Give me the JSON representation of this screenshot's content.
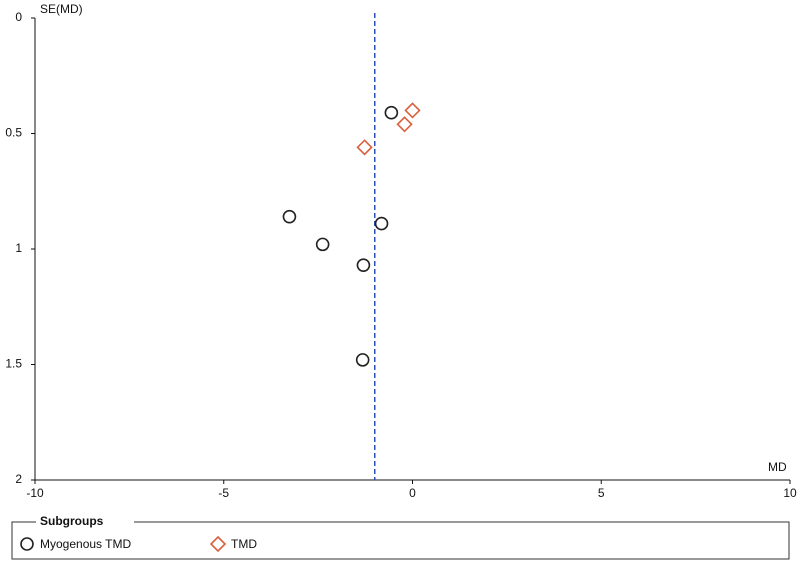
{
  "chart_data": {
    "type": "scatter",
    "y_label": "SE(MD)",
    "x_label": "MD",
    "xlim": [
      -10,
      10
    ],
    "xticks": [
      -10,
      -5,
      0,
      5,
      10
    ],
    "ylim": [
      0,
      2
    ],
    "yticks": [
      0,
      0.5,
      1,
      1.5,
      2
    ],
    "y_inverted": true,
    "reference_x": -1.0,
    "reference_color": "#2b4fb5",
    "legend_title": "Subgroups",
    "legend": "bottom",
    "series": [
      {
        "name": "Myogenous TMD",
        "color": "#222222",
        "marker": "circle",
        "x": [
          -0.56,
          -3.26,
          -2.38,
          -0.82,
          -1.3,
          -1.32
        ],
        "values": [
          0.41,
          0.86,
          0.98,
          0.89,
          1.07,
          1.48
        ]
      },
      {
        "name": "TMD",
        "color": "#d9603b",
        "marker": "diamond",
        "x": [
          0.0,
          -0.21,
          -1.27
        ],
        "values": [
          0.4,
          0.46,
          0.56
        ]
      }
    ]
  }
}
